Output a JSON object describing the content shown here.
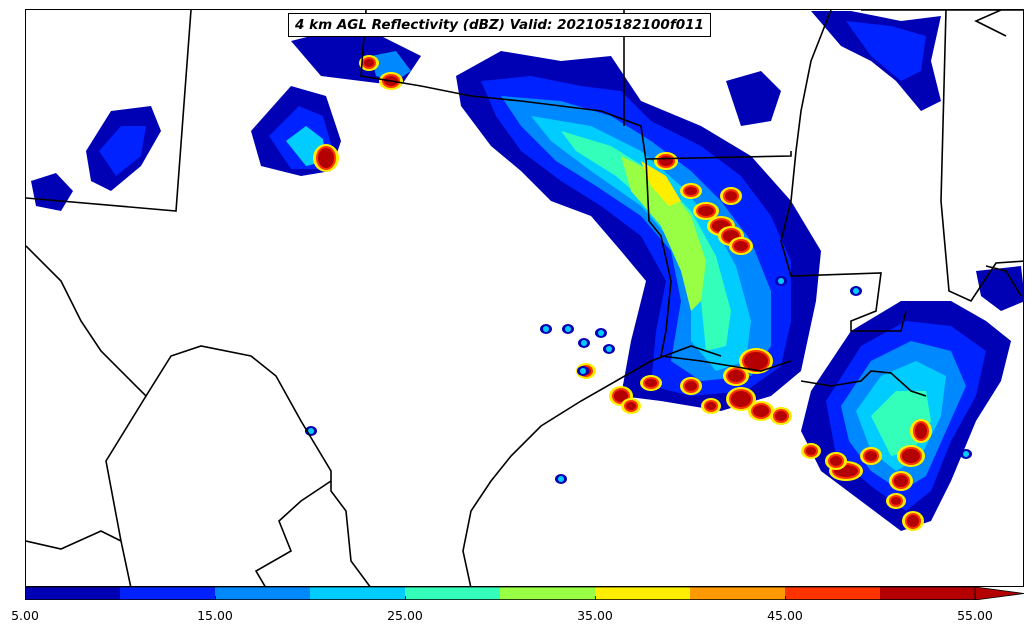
{
  "title": "4 km AGL Reflectivity (dBZ) Valid: 202105182100f011",
  "colorbar": {
    "colors": [
      "#0000b4",
      "#0022ff",
      "#0088ff",
      "#00ccff",
      "#33ffbb",
      "#99ff44",
      "#ffee00",
      "#ff9900",
      "#ff3300",
      "#b40000"
    ],
    "extend_color": "#b40000",
    "tick_labels": [
      "5.00",
      "15.00",
      "25.00",
      "35.00",
      "45.00",
      "55.00"
    ],
    "levels": [
      5,
      10,
      15,
      20,
      25,
      30,
      35,
      40,
      45,
      50,
      55
    ]
  },
  "legend_items": [
    "5.00",
    "15.00",
    "25.00",
    "35.00",
    "45.00",
    "55.00"
  ]
}
